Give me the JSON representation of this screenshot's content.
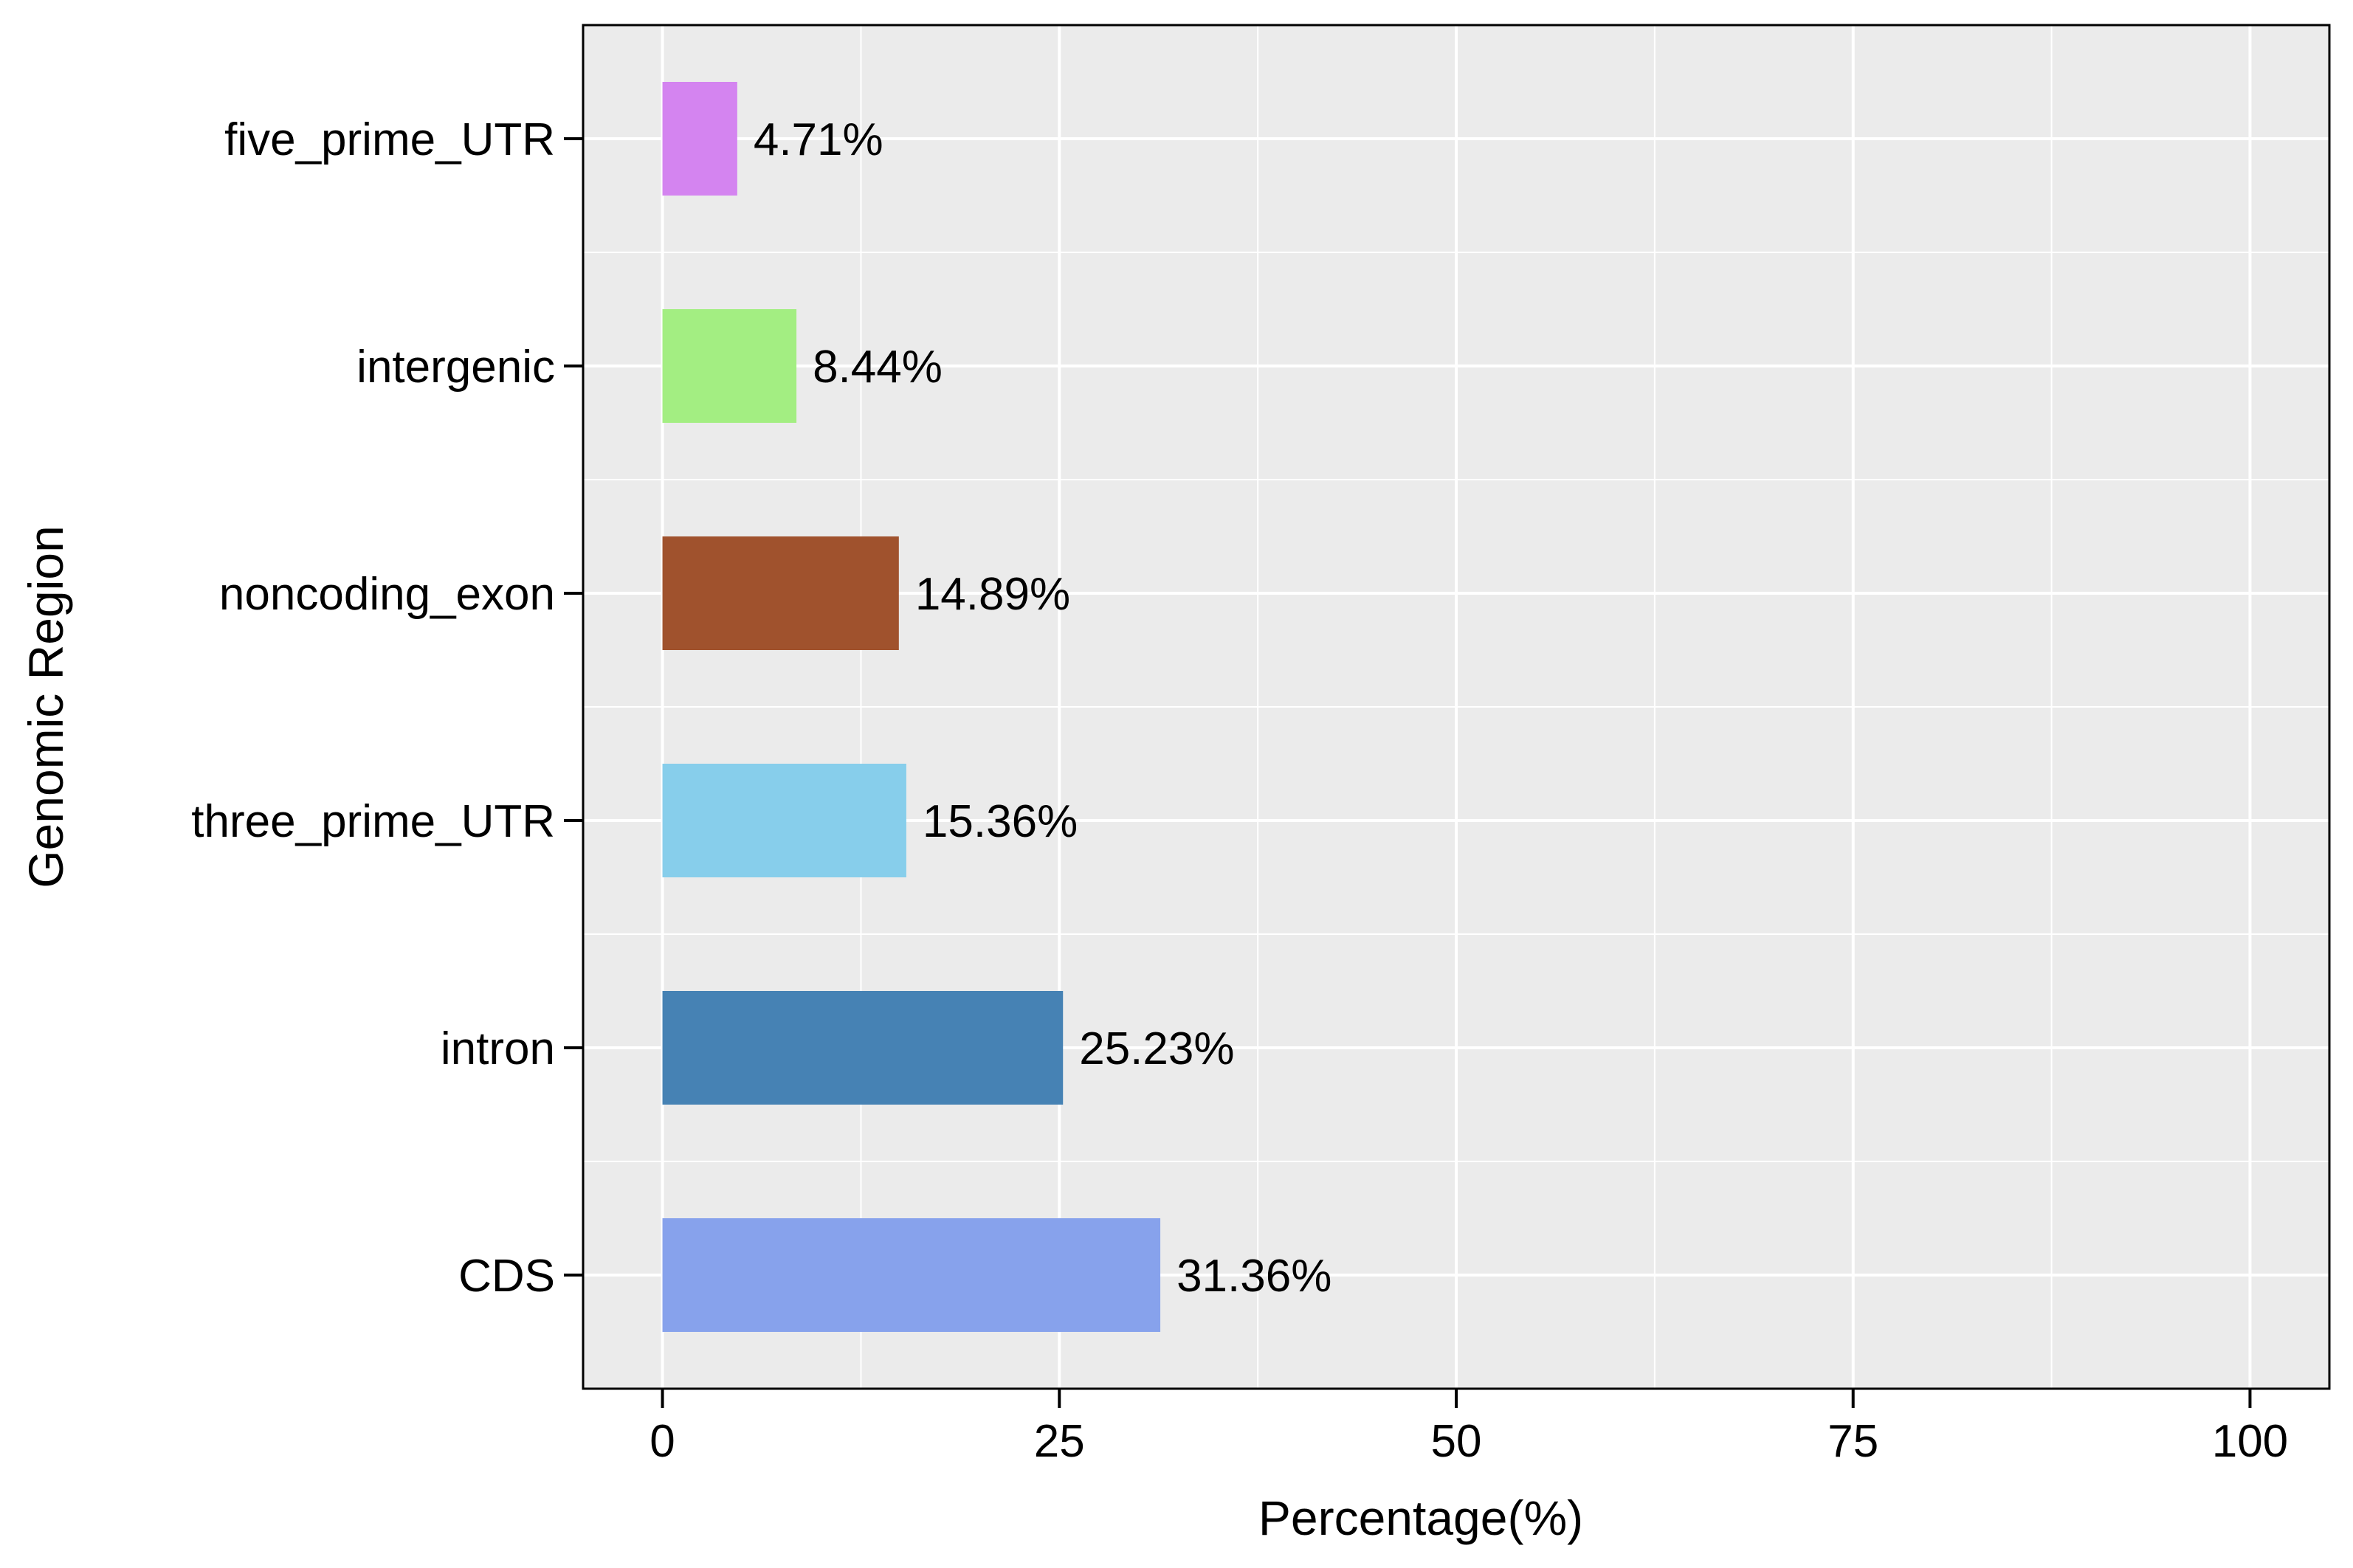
{
  "chart_data": {
    "type": "bar",
    "orientation": "horizontal",
    "title": "",
    "xlabel": "Percentage(%)",
    "ylabel": "Genomic Region",
    "xlim": [
      -5,
      105
    ],
    "x_ticks": [
      0,
      25,
      50,
      75,
      100
    ],
    "x_tick_labels": [
      "0",
      "25",
      "50",
      "75",
      "100"
    ],
    "grid": true,
    "legend": "none",
    "categories": [
      "five_prime_UTR",
      "intergenic",
      "noncoding_exon",
      "three_prime_UTR",
      "intron",
      "CDS"
    ],
    "values": [
      4.71,
      8.44,
      14.89,
      15.36,
      25.23,
      31.36
    ],
    "value_labels": [
      "4.71%",
      "8.44%",
      "14.89%",
      "15.36%",
      "25.23%",
      "31.36%"
    ],
    "colors": [
      "#D484F0",
      "#A3EE82",
      "#A0522D",
      "#87CEEB",
      "#4682B4",
      "#87A2EC"
    ],
    "panel_background": "#EBEBEB",
    "grid_color": "#FFFFFF"
  }
}
